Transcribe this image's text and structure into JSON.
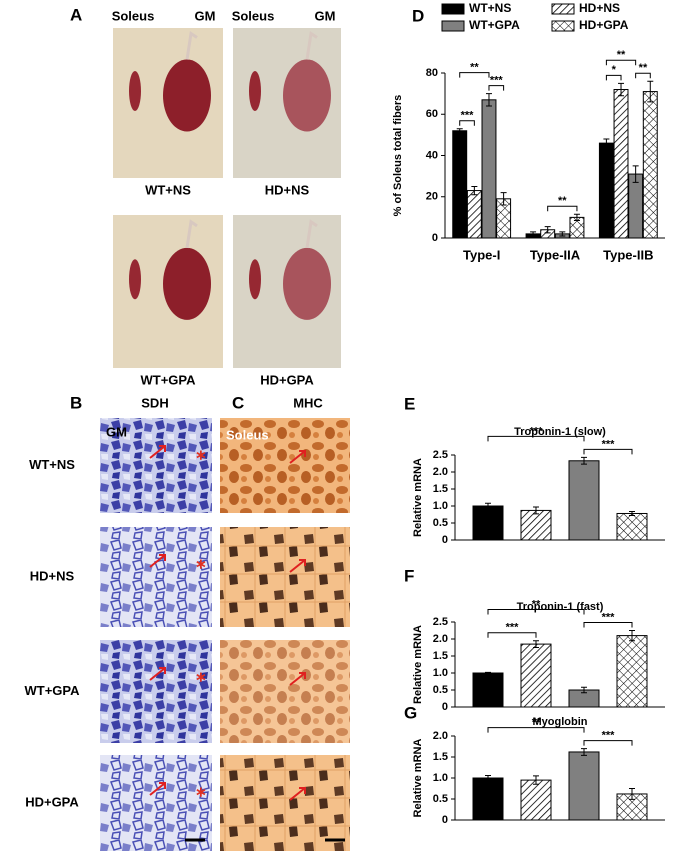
{
  "panel_a": {
    "label": "A",
    "photo_header": [
      "Soleus",
      "GM"
    ],
    "photos": [
      "WT+NS",
      "HD+NS",
      "WT+GPA",
      "HD+GPA"
    ]
  },
  "panel_b": {
    "label": "B",
    "title": "SDH",
    "inset": "GM"
  },
  "panel_c": {
    "label": "C",
    "title": "MHC",
    "inset": "Soleus"
  },
  "rows": [
    "WT+NS",
    "HD+NS",
    "WT+GPA",
    "HD+GPA"
  ],
  "chart_data": [
    {
      "type": "bar",
      "panel_label": "D",
      "y_label": "% of Soleus total fibers",
      "categories": [
        "Type-I",
        "Type-IIA",
        "Type-IIB"
      ],
      "series": [
        {
          "name": "WT+NS",
          "color": "#000000",
          "pattern": "solid",
          "values": [
            52,
            2,
            46
          ],
          "errors": [
            1,
            1,
            2
          ]
        },
        {
          "name": "HD+NS",
          "color": "#ffffff",
          "pattern": "diagonal",
          "values": [
            23,
            4,
            72
          ],
          "errors": [
            2,
            1.5,
            3
          ]
        },
        {
          "name": "WT+GPA",
          "color": "#808080",
          "pattern": "solid",
          "values": [
            67,
            2,
            31
          ],
          "errors": [
            3,
            1,
            4
          ]
        },
        {
          "name": "HD+GPA",
          "color": "#ffffff",
          "pattern": "crosshatch",
          "values": [
            19,
            10,
            71
          ],
          "errors": [
            3,
            1.5,
            5
          ]
        }
      ],
      "significance": [
        {
          "label": "***",
          "category": 0,
          "pair": [
            0,
            1
          ]
        },
        {
          "label": "***",
          "category": 0,
          "pair": [
            2,
            3
          ]
        },
        {
          "label": "**",
          "category": 0,
          "pair": [
            0,
            2
          ]
        },
        {
          "label": "**",
          "category": 1,
          "pair": [
            1,
            3
          ]
        },
        {
          "label": "*",
          "category": 2,
          "pair": [
            0,
            1
          ]
        },
        {
          "label": "**",
          "category": 2,
          "pair": [
            2,
            3
          ]
        },
        {
          "label": "**",
          "category": 2,
          "pair": [
            0,
            2
          ]
        }
      ],
      "ylim": [
        0,
        80
      ],
      "yticks": [
        0,
        20,
        40,
        60,
        80
      ],
      "legend": "top"
    },
    {
      "type": "bar",
      "panel_label": "E",
      "title": "Troponin-1 (slow)",
      "y_label": "Relative mRNA",
      "values": [
        1.0,
        0.87,
        2.33,
        0.78
      ],
      "errors": [
        0.08,
        0.1,
        0.1,
        0.06
      ],
      "colors": [
        "#000000",
        "#ffffff",
        "#808080",
        "#ffffff"
      ],
      "patterns": [
        "solid",
        "diagonal",
        "solid",
        "crosshatch"
      ],
      "significance": [
        {
          "label": "***",
          "pair": [
            2,
            3
          ]
        },
        {
          "label": "***",
          "pair": [
            0,
            2
          ]
        }
      ],
      "ylim": [
        0,
        2.5
      ],
      "yticks": [
        0,
        0.5,
        {
          "value": 1,
          "label": "1.0"
        },
        1.5,
        {
          "value": 2,
          "label": "2.0"
        },
        2.5
      ]
    },
    {
      "type": "bar",
      "panel_label": "F",
      "title": "Troponin-1 (fast)",
      "y_label": "Relative mRNA",
      "values": [
        1.0,
        1.85,
        0.5,
        2.1
      ],
      "errors": [
        0.02,
        0.1,
        0.08,
        0.15
      ],
      "colors": [
        "#000000",
        "#ffffff",
        "#808080",
        "#ffffff"
      ],
      "patterns": [
        "solid",
        "diagonal",
        "solid",
        "crosshatch"
      ],
      "significance": [
        {
          "label": "***",
          "pair": [
            0,
            1
          ]
        },
        {
          "label": "***",
          "pair": [
            2,
            3
          ]
        },
        {
          "label": "**",
          "pair": [
            0,
            2
          ]
        }
      ],
      "ylim": [
        0,
        2.5
      ],
      "yticks": [
        0,
        0.5,
        {
          "value": 1,
          "label": "1.0"
        },
        1.5,
        {
          "value": 2,
          "label": "2.0"
        },
        2.5
      ]
    },
    {
      "type": "bar",
      "panel_label": "G",
      "title": "Myoglobin",
      "y_label": "Relative mRNA",
      "values": [
        1.0,
        0.95,
        1.62,
        0.62
      ],
      "errors": [
        0.06,
        0.1,
        0.08,
        0.13
      ],
      "colors": [
        "#000000",
        "#ffffff",
        "#808080",
        "#ffffff"
      ],
      "patterns": [
        "solid",
        "diagonal",
        "solid",
        "crosshatch"
      ],
      "significance": [
        {
          "label": "***",
          "pair": [
            2,
            3
          ]
        },
        {
          "label": "**",
          "pair": [
            0,
            2
          ]
        }
      ],
      "ylim": [
        0,
        2.0
      ],
      "yticks": [
        0,
        0.5,
        {
          "value": 1,
          "label": "1.0"
        },
        1.5,
        {
          "value": 2,
          "label": "2.0"
        }
      ]
    }
  ]
}
